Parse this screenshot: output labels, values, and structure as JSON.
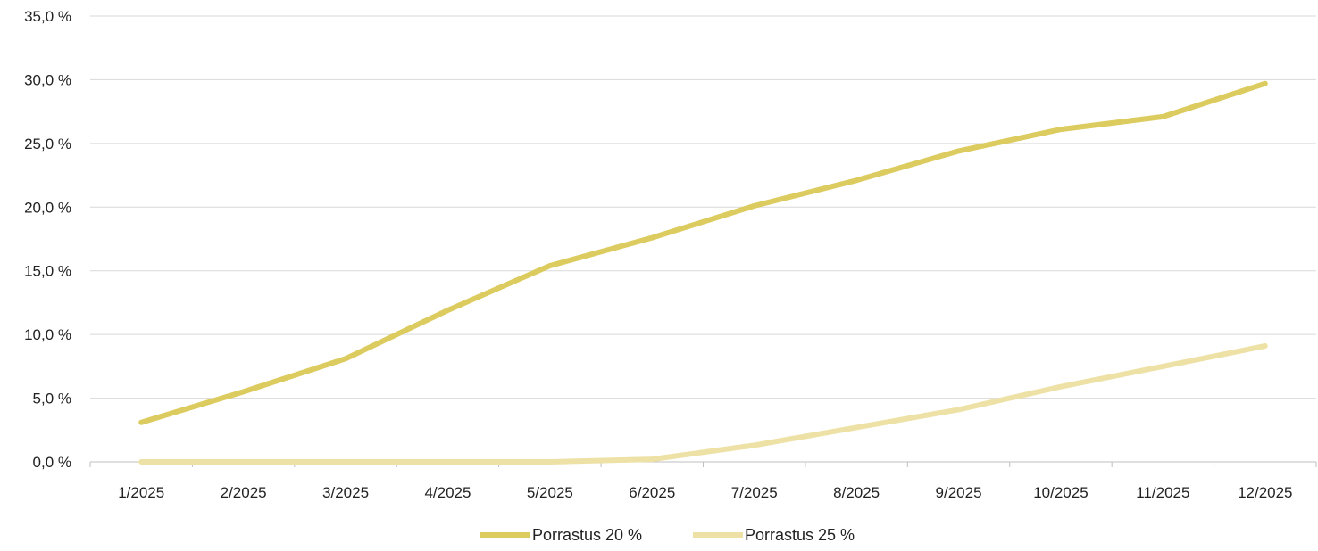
{
  "chart_data": {
    "type": "line",
    "title": "",
    "xlabel": "",
    "ylabel": "",
    "categories": [
      "1/2025",
      "2/2025",
      "3/2025",
      "4/2025",
      "5/2025",
      "6/2025",
      "7/2025",
      "8/2025",
      "9/2025",
      "10/2025",
      "11/2025",
      "12/2025"
    ],
    "ylim": [
      0,
      35
    ],
    "y_ticks": [
      0,
      5,
      10,
      15,
      20,
      25,
      30,
      35
    ],
    "y_tick_labels": [
      "0,0 %",
      "5,0 %",
      "10,0 %",
      "15,0 %",
      "20,0 %",
      "25,0 %",
      "30,0 %",
      "35,0 %"
    ],
    "grid": "horizontal",
    "legend_position": "bottom",
    "series": [
      {
        "name": "Porrastus 20 %",
        "color": "#dccb5e",
        "values": [
          3.1,
          5.5,
          8.1,
          11.9,
          15.4,
          17.6,
          20.1,
          22.1,
          24.4,
          26.1,
          27.1,
          29.7
        ]
      },
      {
        "name": "Porrastus 25 %",
        "color": "#ede1a6",
        "values": [
          0.0,
          0.0,
          0.0,
          0.0,
          0.0,
          0.2,
          1.3,
          2.7,
          4.1,
          5.9,
          7.5,
          9.1
        ]
      }
    ]
  }
}
